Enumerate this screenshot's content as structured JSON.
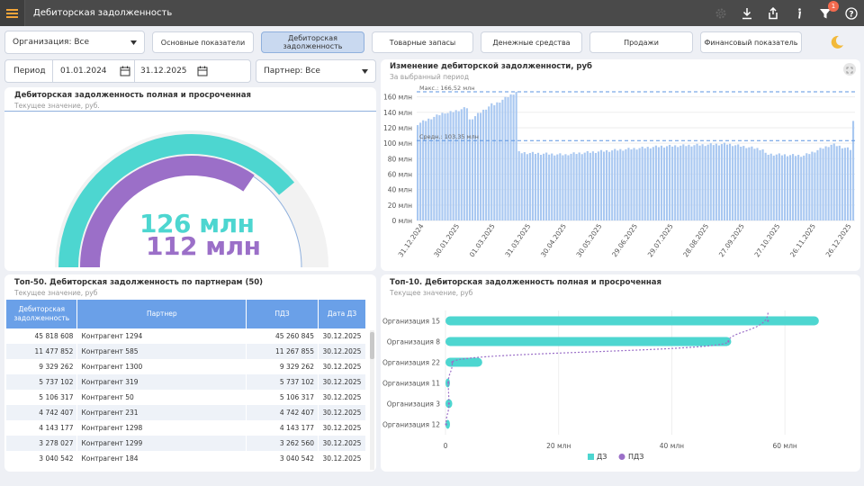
{
  "header": {
    "title": "Дебиторская задолженность",
    "badge_count": "1"
  },
  "filters": {
    "organization": "Организация: Все",
    "period_label": "Период",
    "date_from": "01.01.2024",
    "date_to": "31.12.2025",
    "partner": "Партнер: Все"
  },
  "tabs": [
    "Основные показатели",
    "Дебиторская задолженность",
    "Товарные запасы",
    "Денежные средства",
    "Продажи",
    "Финансовый показатель"
  ],
  "gauge": {
    "title": "Дебиторская задолженность полная и просроченная",
    "subtitle": "Текущее значение, руб.",
    "value_total": "126 млн",
    "value_overdue": "112 млн",
    "total_fraction": 0.78,
    "overdue_fraction": 0.69,
    "color_total": "#4dd6d0",
    "color_overdue": "#9b6fc8"
  },
  "change_chart": {
    "title": "Изменение дебиторской задолженности, руб",
    "subtitle": "За выбранный период",
    "max_label": "Макс.: 166,52 млн",
    "avg_label": "Средн.: 103,35 млн",
    "chart_data": {
      "type": "bar",
      "ylim": [
        0,
        170
      ],
      "yticks": [
        "0 млн",
        "20 млн",
        "40 млн",
        "60 млн",
        "80 млн",
        "100 млн",
        "120 млн",
        "140 млн",
        "160 млн"
      ],
      "x_dates": [
        "31.12.2024",
        "30.01.2025",
        "01.03.2025",
        "31.03.2025",
        "30.04.2025",
        "30.05.2025",
        "29.06.2025",
        "29.07.2025",
        "28.08.2025",
        "27.09.2025",
        "27.10.2025",
        "26.11.2025",
        "26.12.2025"
      ],
      "max": 166.52,
      "avg": 103.35,
      "segments": [
        {
          "from": 0,
          "to": 11,
          "start": 125,
          "end": 140
        },
        {
          "from": 11,
          "to": 19,
          "start": 139,
          "end": 146
        },
        {
          "from": 19,
          "to": 28,
          "start": 130,
          "end": 150
        },
        {
          "from": 28,
          "to": 37,
          "start": 150,
          "end": 166.5
        },
        {
          "from": 37,
          "to": 55,
          "start": 88,
          "end": 85
        },
        {
          "from": 55,
          "to": 90,
          "start": 86,
          "end": 96
        },
        {
          "from": 90,
          "to": 113,
          "start": 96,
          "end": 99
        },
        {
          "from": 113,
          "to": 127,
          "start": 99,
          "end": 92
        },
        {
          "from": 127,
          "to": 141,
          "start": 86,
          "end": 84
        },
        {
          "from": 141,
          "to": 152,
          "start": 84,
          "end": 98
        },
        {
          "from": 152,
          "to": 159,
          "start": 98,
          "end": 92
        },
        {
          "from": 159,
          "to": 160,
          "start": 128,
          "end": 128
        }
      ],
      "bar_count": 160
    }
  },
  "top50": {
    "title": "Топ-50. Дебиторская задолженность по партнерам (50)",
    "subtitle": "Текущее значение, руб",
    "columns": [
      "Дебиторская задолженность",
      "Партнер",
      "ПДЗ",
      "Дата ДЗ"
    ],
    "rows": [
      [
        "45 818 608",
        "Контрагент 1294",
        "45 260 845",
        "30.12.2025"
      ],
      [
        "11 477 852",
        "Контрагент 585",
        "11 267 855",
        "30.12.2025"
      ],
      [
        "9 329 262",
        "Контрагент 1300",
        "9 329 262",
        "30.12.2025"
      ],
      [
        "5 737 102",
        "Контрагент 319",
        "5 737 102",
        "30.12.2025"
      ],
      [
        "5 106 317",
        "Контрагент 50",
        "5 106 317",
        "30.12.2025"
      ],
      [
        "4 742 407",
        "Контрагент 231",
        "4 742 407",
        "30.12.2025"
      ],
      [
        "4 143 177",
        "Контрагент 1298",
        "4 143 177",
        "30.12.2025"
      ],
      [
        "3 278 027",
        "Контрагент 1299",
        "3 262 560",
        "30.12.2025"
      ],
      [
        "3 040 542",
        "Контрагент 184",
        "3 040 542",
        "30.12.2025"
      ]
    ]
  },
  "top10": {
    "title": "Топ-10. Дебиторская задолженность полная и просроченная",
    "subtitle": "Текущее значение, руб",
    "chart_data": {
      "type": "bar",
      "orientation": "horizontal",
      "categories": [
        "Организация 15",
        "Организация 8",
        "Организация 22",
        "Организация 11",
        "Организация 3",
        "Организация 12"
      ],
      "series": [
        {
          "name": "ДЗ",
          "values": [
            66,
            50.5,
            6.5,
            0.3,
            1.2,
            0.2
          ]
        },
        {
          "name": "ПДЗ",
          "values": [
            57,
            50,
            1.2,
            0.5,
            0.6,
            0.1
          ]
        }
      ],
      "xlim": [
        0,
        70
      ],
      "xticks": [
        "0",
        "20 млн",
        "40 млн",
        "60 млн"
      ],
      "legend": "bottom",
      "colors": [
        "#4dd6d0",
        "#9b6fc8"
      ]
    }
  }
}
